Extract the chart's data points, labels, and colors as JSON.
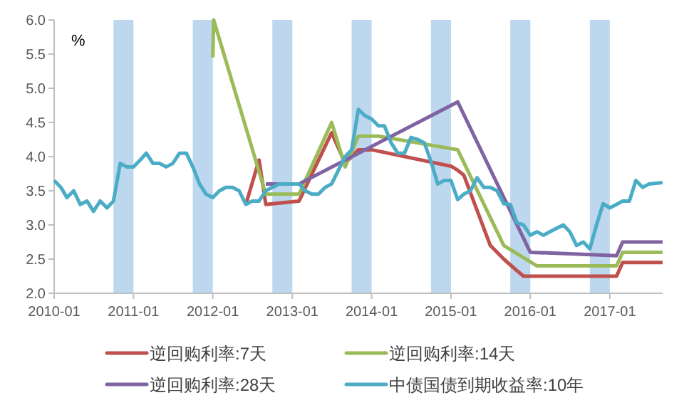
{
  "chart_data": {
    "type": "line",
    "ylabel": "%",
    "xlim": [
      "2010-01",
      "2017-09"
    ],
    "ylim": [
      2.0,
      6.0
    ],
    "yticks": [
      {
        "value": 2.0,
        "label": "2.0"
      },
      {
        "value": 2.5,
        "label": "2.5"
      },
      {
        "value": 3.0,
        "label": "3.0"
      },
      {
        "value": 3.5,
        "label": "3.5"
      },
      {
        "value": 4.0,
        "label": "4.0"
      },
      {
        "value": 4.5,
        "label": "4.5"
      },
      {
        "value": 5.0,
        "label": "5.0"
      },
      {
        "value": 5.5,
        "label": "5.5"
      },
      {
        "value": 6.0,
        "label": "6.0"
      }
    ],
    "xticks": [
      "2010-01",
      "2011-01",
      "2012-01",
      "2013-01",
      "2014-01",
      "2015-01",
      "2016-01",
      "2017-01"
    ],
    "grid": false,
    "legend": "bottom",
    "marker": "none",
    "line_style": "solid",
    "bands": [
      {
        "axis": "x",
        "from": "2010-10",
        "to": "2011-01",
        "color": "#bdd7ee"
      },
      {
        "axis": "x",
        "from": "2011-10",
        "to": "2012-01",
        "color": "#bdd7ee"
      },
      {
        "axis": "x",
        "from": "2012-10",
        "to": "2013-01",
        "color": "#bdd7ee"
      },
      {
        "axis": "x",
        "from": "2013-10",
        "to": "2014-01",
        "color": "#bdd7ee"
      },
      {
        "axis": "x",
        "from": "2014-10",
        "to": "2015-01",
        "color": "#bdd7ee"
      },
      {
        "axis": "x",
        "from": "2015-10",
        "to": "2016-01",
        "color": "#bdd7ee"
      },
      {
        "axis": "x",
        "from": "2016-10",
        "to": "2017-01",
        "color": "#bdd7ee"
      }
    ],
    "series": [
      {
        "name": "逆回购利率:7天",
        "color": "#c0504d",
        "x": [
          "2012-06",
          "2012-08",
          "2012-09",
          "2013-02",
          "2013-07",
          "2013-09",
          "2013-11",
          "2014-01",
          "2015-01",
          "2015-02",
          "2015-03",
          "2015-07",
          "2015-09",
          "2015-11",
          "2015-12",
          "2017-02",
          "2017-03",
          "2017-09"
        ],
        "values": [
          3.3,
          3.95,
          3.3,
          3.35,
          4.35,
          3.9,
          4.1,
          4.1,
          3.86,
          3.8,
          3.73,
          2.7,
          2.5,
          2.33,
          2.25,
          2.25,
          2.45,
          2.45
        ]
      },
      {
        "name": "逆回购利率:14天",
        "color": "#9bbb59",
        "x": [
          "2012-01",
          "2012-01-05",
          "2012-09",
          "2013-02",
          "2013-07",
          "2013-09",
          "2013-11",
          "2014-02",
          "2015-02",
          "2015-09",
          "2016-02",
          "2017-02",
          "2017-03",
          "2017-09"
        ],
        "values": [
          5.45,
          6.0,
          3.45,
          3.45,
          4.5,
          3.85,
          4.3,
          4.3,
          4.1,
          2.7,
          2.4,
          2.4,
          2.6,
          2.6
        ]
      },
      {
        "name": "逆回购利率:28天",
        "color": "#8064a2",
        "x": [
          "2012-09",
          "2013-02",
          "2015-02",
          "2016-01",
          "2017-02",
          "2017-03",
          "2017-09"
        ],
        "values": [
          3.6,
          3.6,
          4.8,
          2.6,
          2.55,
          2.75,
          2.75
        ]
      },
      {
        "name": "中债国债到期收益率:10年",
        "color": "#4bacc6",
        "x": [
          "2010-01",
          "2010-02",
          "2010-03",
          "2010-04",
          "2010-05",
          "2010-06",
          "2010-07",
          "2010-08",
          "2010-09",
          "2010-10",
          "2010-11",
          "2010-12",
          "2011-01",
          "2011-02",
          "2011-03",
          "2011-04",
          "2011-05",
          "2011-06",
          "2011-07",
          "2011-08",
          "2011-09",
          "2011-10",
          "2011-11",
          "2011-12",
          "2012-01",
          "2012-02",
          "2012-03",
          "2012-04",
          "2012-05",
          "2012-06",
          "2012-07",
          "2012-08",
          "2012-09",
          "2012-10",
          "2012-11",
          "2012-12",
          "2013-01",
          "2013-02",
          "2013-03",
          "2013-04",
          "2013-05",
          "2013-06",
          "2013-07",
          "2013-08",
          "2013-09",
          "2013-10",
          "2013-11",
          "2013-12",
          "2014-01",
          "2014-02",
          "2014-03",
          "2014-04",
          "2014-05",
          "2014-06",
          "2014-07",
          "2014-08",
          "2014-09",
          "2014-10",
          "2014-11",
          "2014-12",
          "2015-01",
          "2015-02",
          "2015-03",
          "2015-04",
          "2015-05",
          "2015-06",
          "2015-07",
          "2015-08",
          "2015-09",
          "2015-10",
          "2015-11",
          "2015-12",
          "2016-01",
          "2016-02",
          "2016-03",
          "2016-04",
          "2016-05",
          "2016-06",
          "2016-07",
          "2016-08",
          "2016-09",
          "2016-10",
          "2016-11",
          "2016-12",
          "2017-01",
          "2017-02",
          "2017-03",
          "2017-04",
          "2017-05",
          "2017-06",
          "2017-07",
          "2017-09"
        ],
        "values": [
          3.65,
          3.55,
          3.4,
          3.5,
          3.3,
          3.35,
          3.2,
          3.35,
          3.25,
          3.35,
          3.9,
          3.85,
          3.85,
          3.95,
          4.05,
          3.9,
          3.9,
          3.85,
          3.9,
          4.05,
          4.05,
          3.85,
          3.6,
          3.45,
          3.4,
          3.5,
          3.55,
          3.55,
          3.5,
          3.3,
          3.35,
          3.35,
          3.5,
          3.55,
          3.6,
          3.6,
          3.6,
          3.6,
          3.5,
          3.45,
          3.45,
          3.55,
          3.6,
          3.8,
          4.0,
          4.1,
          4.69,
          4.6,
          4.55,
          4.45,
          4.45,
          4.2,
          4.05,
          4.05,
          4.28,
          4.25,
          4.2,
          3.93,
          3.6,
          3.65,
          3.65,
          3.37,
          3.45,
          3.5,
          3.69,
          3.55,
          3.55,
          3.5,
          3.31,
          3.3,
          3.03,
          3.0,
          2.85,
          2.9,
          2.85,
          2.9,
          2.95,
          3.0,
          2.9,
          2.7,
          2.75,
          2.65,
          3.0,
          3.31,
          3.25,
          3.3,
          3.35,
          3.35,
          3.65,
          3.55,
          3.6,
          3.62
        ]
      }
    ]
  }
}
